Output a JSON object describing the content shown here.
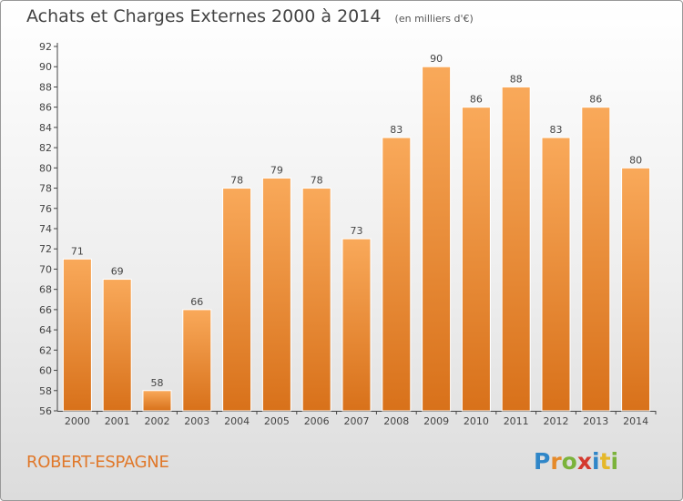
{
  "title": "Achats et Charges Externes 2000 à 2014",
  "unit": "(en milliers d'€)",
  "commune": "ROBERT-ESPAGNE",
  "logo_text": "Proxiti",
  "colors": {
    "bar_light": "#f9a95a",
    "bar_dark": "#d8711a",
    "axis": "#444444",
    "grid": "#dddddd",
    "commune": "#e0782a"
  },
  "chart_data": {
    "type": "bar",
    "categories": [
      "2000",
      "2001",
      "2002",
      "2003",
      "2004",
      "2005",
      "2006",
      "2007",
      "2008",
      "2009",
      "2010",
      "2011",
      "2012",
      "2013",
      "2014"
    ],
    "values": [
      71,
      69,
      58,
      66,
      78,
      79,
      78,
      73,
      83,
      90,
      86,
      88,
      83,
      86,
      80
    ],
    "ylim": [
      56,
      92
    ],
    "yticks": [
      56,
      58,
      60,
      62,
      64,
      66,
      68,
      70,
      72,
      74,
      76,
      78,
      80,
      82,
      84,
      86,
      88,
      90,
      92
    ],
    "grid": false,
    "data_labels": true
  }
}
